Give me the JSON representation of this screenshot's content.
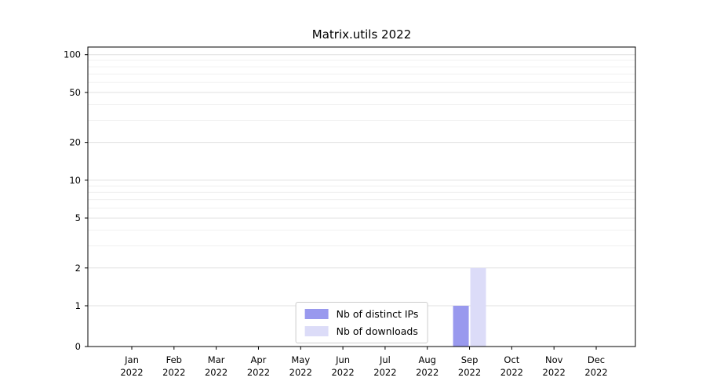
{
  "chart_data": {
    "type": "bar",
    "title": "Matrix.utils 2022",
    "categories": [
      "Jan 2022",
      "Feb 2022",
      "Mar 2022",
      "Apr 2022",
      "May 2022",
      "Jun 2022",
      "Jul 2022",
      "Aug 2022",
      "Sep 2022",
      "Oct 2022",
      "Nov 2022",
      "Dec 2022"
    ],
    "series": [
      {
        "name": "Nb of distinct IPs",
        "color": "#9999ee",
        "values": [
          0,
          0,
          0,
          0,
          0,
          0,
          0,
          0,
          1,
          0,
          0,
          0
        ]
      },
      {
        "name": "Nb of downloads",
        "color": "#dcdcf8",
        "values": [
          0,
          0,
          0,
          0,
          0,
          0,
          0,
          0,
          2,
          0,
          0,
          0
        ]
      }
    ],
    "yscale": "symlog",
    "yticks": [
      0,
      1,
      2,
      5,
      10,
      20,
      50,
      100
    ],
    "yticks_minor": [
      3,
      4,
      6,
      7,
      8,
      9,
      30,
      40,
      60,
      70,
      80,
      90
    ],
    "ylim": [
      0,
      115
    ],
    "grid": true,
    "legend_position": "lower center",
    "axis_color": "#000000",
    "grid_major_color": "#e0e0e0",
    "grid_minor_color": "#f0f0f0"
  }
}
